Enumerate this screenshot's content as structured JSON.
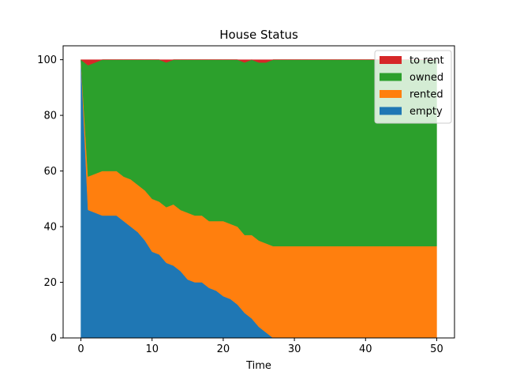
{
  "chart_data": {
    "type": "area",
    "stacked": true,
    "title": "House Status",
    "xlabel": "Time",
    "ylabel": "",
    "xlim": [
      -2.5,
      52.5
    ],
    "ylim": [
      0,
      105
    ],
    "xticks": [
      0,
      10,
      20,
      30,
      40,
      50
    ],
    "yticks": [
      0,
      20,
      40,
      60,
      80,
      100
    ],
    "grid": false,
    "legend_position": "top-right",
    "legend_order": [
      "to rent",
      "owned",
      "rented",
      "empty"
    ],
    "x": [
      0,
      1,
      2,
      3,
      4,
      5,
      6,
      7,
      8,
      9,
      10,
      11,
      12,
      13,
      14,
      15,
      16,
      17,
      18,
      19,
      20,
      21,
      22,
      23,
      24,
      25,
      26,
      27,
      28,
      29,
      30,
      31,
      32,
      33,
      34,
      35,
      36,
      37,
      38,
      39,
      40,
      41,
      42,
      43,
      44,
      45,
      46,
      47,
      48,
      49,
      50
    ],
    "series": [
      {
        "name": "empty",
        "color": "#1f77b4",
        "values": [
          100,
          46,
          45,
          44,
          44,
          44,
          42,
          40,
          38,
          35,
          31,
          30,
          27,
          26,
          24,
          21,
          20,
          20,
          18,
          17,
          15,
          14,
          12,
          9,
          7,
          4,
          2,
          0,
          0,
          0,
          0,
          0,
          0,
          0,
          0,
          0,
          0,
          0,
          0,
          0,
          0,
          0,
          0,
          0,
          0,
          0,
          0,
          0,
          0,
          0,
          0
        ]
      },
      {
        "name": "rented",
        "color": "#ff7f0e",
        "values": [
          0,
          12,
          14,
          16,
          16,
          16,
          16,
          17,
          17,
          18,
          19,
          19,
          20,
          22,
          22,
          24,
          24,
          24,
          24,
          25,
          27,
          27,
          28,
          28,
          30,
          31,
          32,
          33,
          33,
          33,
          33,
          33,
          33,
          33,
          33,
          33,
          33,
          33,
          33,
          33,
          33,
          33,
          33,
          33,
          33,
          33,
          33,
          33,
          33,
          33,
          33
        ]
      },
      {
        "name": "owned",
        "color": "#2ca02c",
        "values": [
          0,
          40,
          40,
          40,
          40,
          40,
          42,
          43,
          45,
          47,
          50,
          51,
          52,
          52,
          54,
          55,
          56,
          56,
          58,
          58,
          58,
          59,
          60,
          62,
          63,
          64,
          65,
          67,
          67,
          67,
          67,
          67,
          67,
          67,
          67,
          67,
          67,
          67,
          67,
          67,
          67,
          67,
          67,
          67,
          67,
          67,
          67,
          67,
          67,
          67,
          67
        ]
      },
      {
        "name": "to rent",
        "color": "#d62728",
        "values": [
          0,
          2,
          1,
          0,
          0,
          0,
          0,
          0,
          0,
          0,
          0,
          0,
          1,
          0,
          0,
          0,
          0,
          0,
          0,
          0,
          0,
          0,
          0,
          1,
          0,
          1,
          1,
          0,
          0,
          0,
          0,
          0,
          0,
          0,
          0,
          0,
          0,
          0,
          0,
          0,
          0,
          0,
          0,
          0,
          0,
          0,
          0,
          0,
          0,
          0,
          0
        ]
      }
    ]
  }
}
